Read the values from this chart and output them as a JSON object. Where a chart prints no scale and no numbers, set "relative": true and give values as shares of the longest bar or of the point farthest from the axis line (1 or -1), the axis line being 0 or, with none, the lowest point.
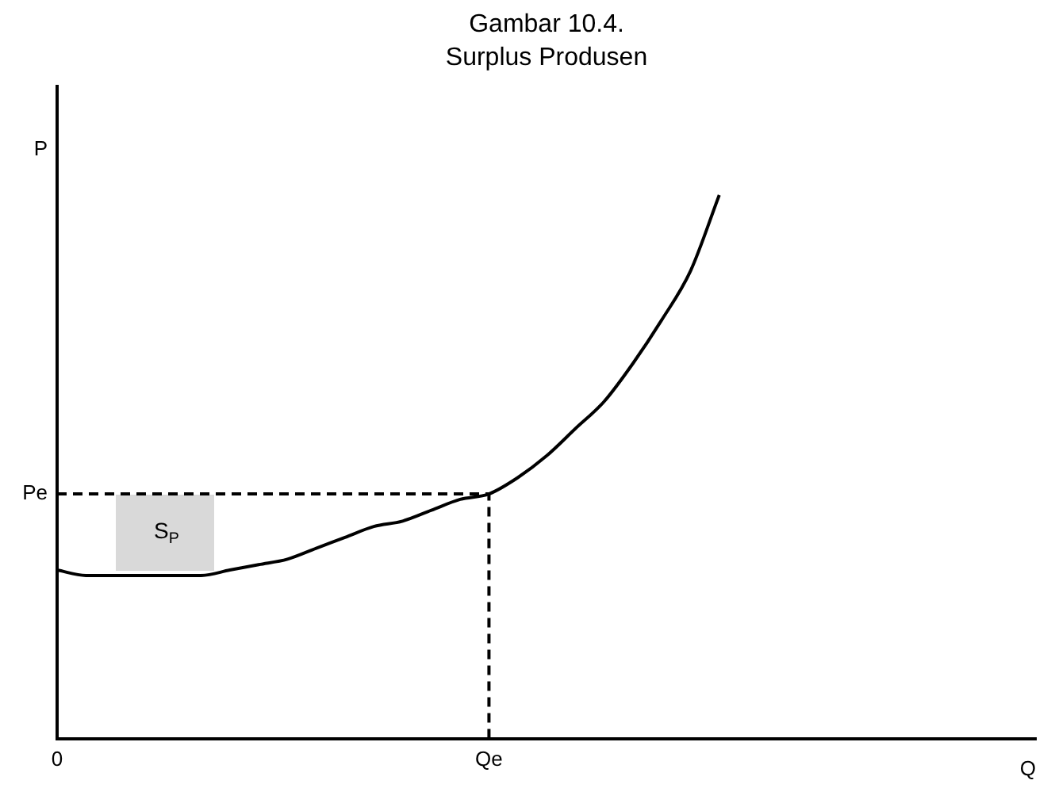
{
  "chart_data": {
    "type": "line",
    "title": "Gambar 10.4.",
    "subtitle": "Surplus Produsen",
    "xlabel": "Q",
    "ylabel": "P",
    "relative": true,
    "categories": [
      "0",
      null,
      null,
      null,
      null,
      null,
      null,
      null,
      null,
      null,
      null,
      null,
      null,
      null,
      null,
      "Qe",
      null,
      null,
      null,
      null,
      null,
      null,
      null,
      null,
      null,
      null,
      null,
      null,
      null,
      null,
      null,
      null,
      null,
      null,
      null
    ],
    "series": [
      {
        "color": "#000000",
        "values": [
          0.31,
          0.3,
          0.3,
          0.3,
          0.3,
          0.3,
          0.31,
          0.32,
          0.33,
          0.35,
          0.37,
          0.39,
          0.4,
          0.42,
          0.44,
          0.45,
          0.48,
          0.52,
          0.57,
          0.62,
          0.69,
          0.77,
          0.86,
          1,
          null,
          null,
          null,
          null,
          null,
          null,
          null,
          null,
          null,
          null,
          null
        ]
      }
    ],
    "ref_lines": [
      {
        "axis": "y",
        "value": 0.45,
        "label": "Pe",
        "line_style": "dashed",
        "color": "#000000"
      },
      {
        "axis": "x",
        "value": "Qe",
        "line_style": "dashed",
        "color": "#000000"
      }
    ],
    "annotations": [
      "S$_{P}$"
    ],
    "grid": false,
    "legend": false,
    "marker": "none",
    "line_style": "solid"
  }
}
